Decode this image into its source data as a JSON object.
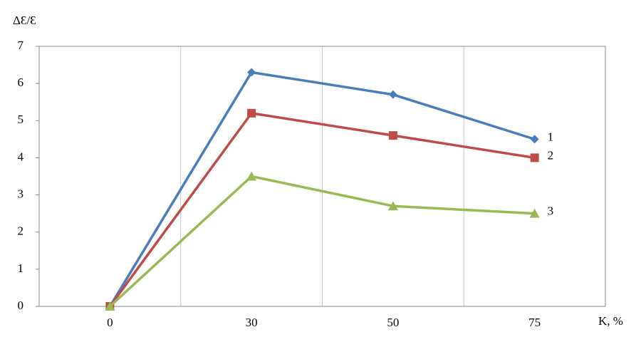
{
  "chart_data": {
    "type": "line",
    "y_label": "ΔƐ/Ɛ",
    "x_label": "K, %",
    "categories": [
      "0",
      "30",
      "50",
      "75"
    ],
    "series": [
      {
        "name": "1",
        "color": "#4a7ebb",
        "marker": "diamond",
        "values": [
          0,
          6.3,
          5.7,
          4.5
        ]
      },
      {
        "name": "2",
        "color": "#be4b48",
        "marker": "square",
        "values": [
          0,
          5.2,
          4.6,
          4.0
        ]
      },
      {
        "name": "3",
        "color": "#98b954",
        "marker": "triangle",
        "values": [
          0,
          3.5,
          2.7,
          2.5
        ]
      }
    ],
    "ylim": [
      0,
      7
    ],
    "yticks": [
      0,
      1,
      2,
      3,
      4,
      5,
      6,
      7
    ],
    "grid": "x"
  }
}
